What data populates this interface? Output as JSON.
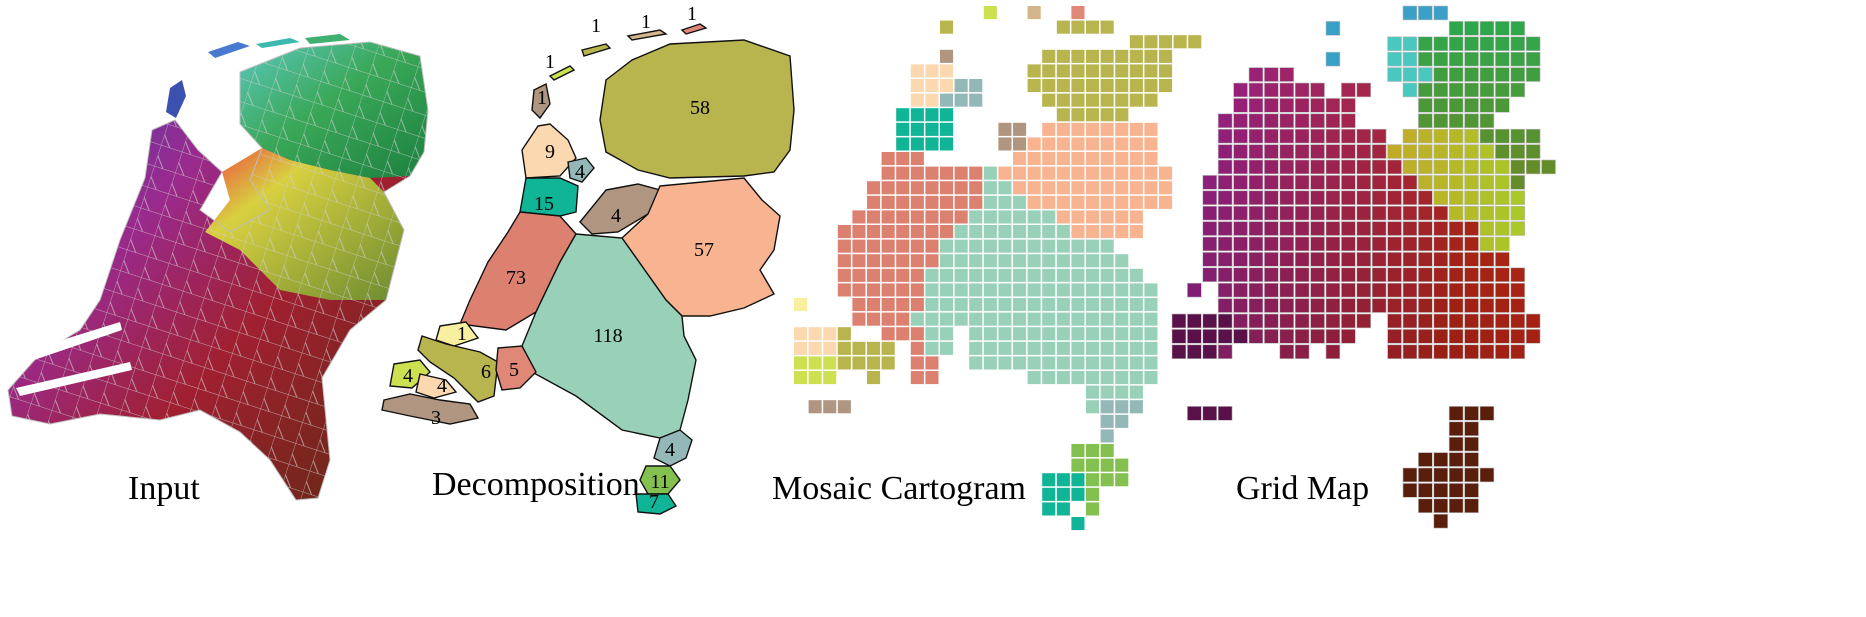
{
  "panels": [
    {
      "id": "input",
      "caption": "Input"
    },
    {
      "id": "decomposition",
      "caption": "Decomposition"
    },
    {
      "id": "mosaic",
      "caption": "Mosaic Cartogram"
    },
    {
      "id": "grid",
      "caption": "Grid Map"
    }
  ],
  "regions": [
    {
      "label": "1",
      "color": "#b8b44e"
    },
    {
      "label": "1",
      "color": "#d4b48a"
    },
    {
      "label": "1",
      "color": "#e08878"
    },
    {
      "label": "1",
      "color": "#cce050"
    },
    {
      "label": "1",
      "color": "#b09680"
    },
    {
      "label": "58",
      "color": "#b8b44e"
    },
    {
      "label": "9",
      "color": "#fcd8b0"
    },
    {
      "label": "4",
      "color": "#94b8b8"
    },
    {
      "label": "15",
      "color": "#10b496"
    },
    {
      "label": "4",
      "color": "#b09680"
    },
    {
      "label": "57",
      "color": "#f8b490"
    },
    {
      "label": "73",
      "color": "#dc8070"
    },
    {
      "label": "118",
      "color": "#98d0b8"
    },
    {
      "label": "1",
      "color": "#f8f0a0"
    },
    {
      "label": "6",
      "color": "#b8b44e"
    },
    {
      "label": "5",
      "color": "#e08878"
    },
    {
      "label": "4",
      "color": "#cce050"
    },
    {
      "label": "4",
      "color": "#fcd8b0"
    },
    {
      "label": "3",
      "color": "#b09680"
    },
    {
      "label": "4",
      "color": "#94b8b8"
    },
    {
      "label": "11",
      "color": "#84c050"
    },
    {
      "label": "7",
      "color": "#10b496"
    }
  ]
}
